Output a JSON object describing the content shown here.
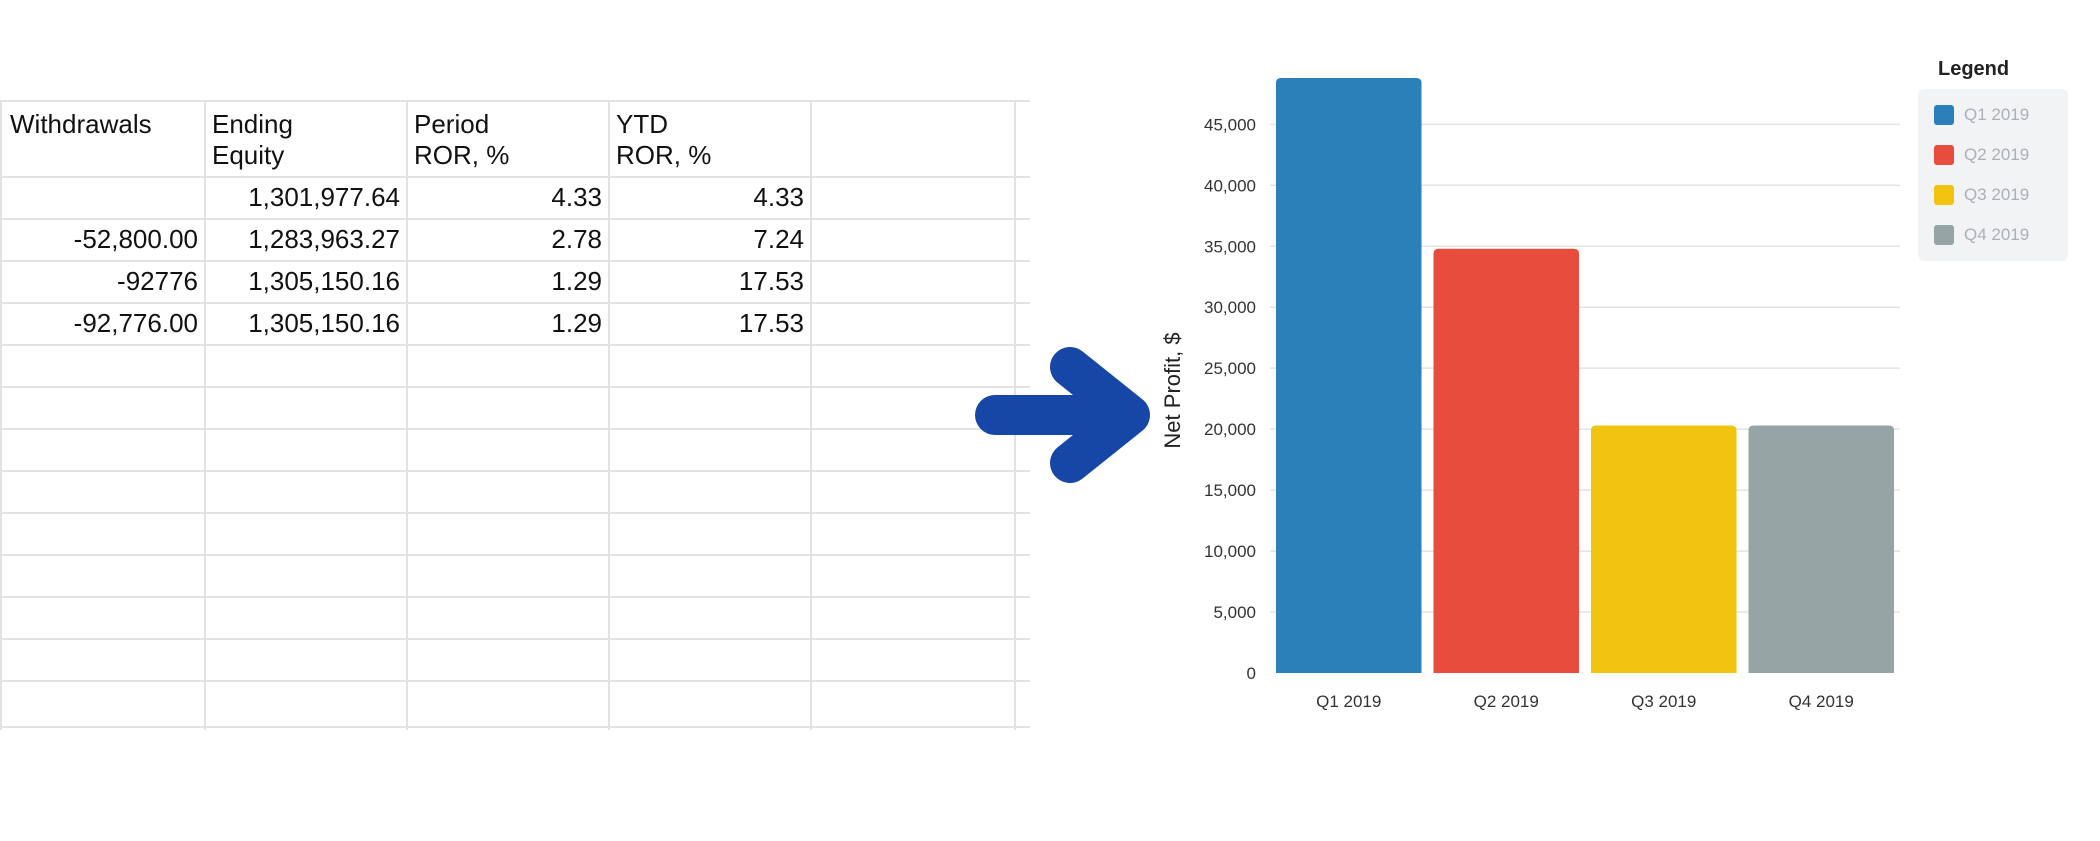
{
  "table": {
    "headers": [
      [
        "Withdrawals",
        ""
      ],
      [
        "Ending",
        "Equity"
      ],
      [
        "Period",
        "ROR, %"
      ],
      [
        "YTD",
        "ROR, %"
      ]
    ],
    "rows": [
      [
        "",
        "1,301,977.64",
        "4.33",
        "4.33"
      ],
      [
        "-52,800.00",
        "1,283,963.27",
        "2.78",
        "7.24"
      ],
      [
        "-92776",
        "1,305,150.16",
        "1.29",
        "17.53"
      ],
      [
        "-92,776.00",
        "1,305,150.16",
        "1.29",
        "17.53"
      ]
    ]
  },
  "arrow": {
    "icon": "arrow-right-icon",
    "color": "#1747a6"
  },
  "chart_data": {
    "type": "bar",
    "categories": [
      "Q1 2019",
      "Q2 2019",
      "Q3 2019",
      "Q4 2019"
    ],
    "values": [
      48800,
      34800,
      20300,
      20300
    ],
    "colors": [
      "#2b80b9",
      "#e74c3c",
      "#f1c40f",
      "#95a5a6"
    ],
    "title": "",
    "xlabel": "",
    "ylabel": "Net Profit, $",
    "ylim": [
      0,
      48800
    ],
    "yticks": [
      0,
      5000,
      10000,
      15000,
      20000,
      25000,
      30000,
      35000,
      40000,
      45000
    ],
    "ytick_labels": [
      "0",
      "5,000",
      "10,000",
      "15,000",
      "20,000",
      "25,000",
      "30,000",
      "35,000",
      "40,000",
      "45,000"
    ],
    "grid": true,
    "legend": {
      "title": "Legend",
      "position": "right",
      "entries": [
        "Q1 2019",
        "Q2 2019",
        "Q3 2019",
        "Q4 2019"
      ]
    }
  }
}
